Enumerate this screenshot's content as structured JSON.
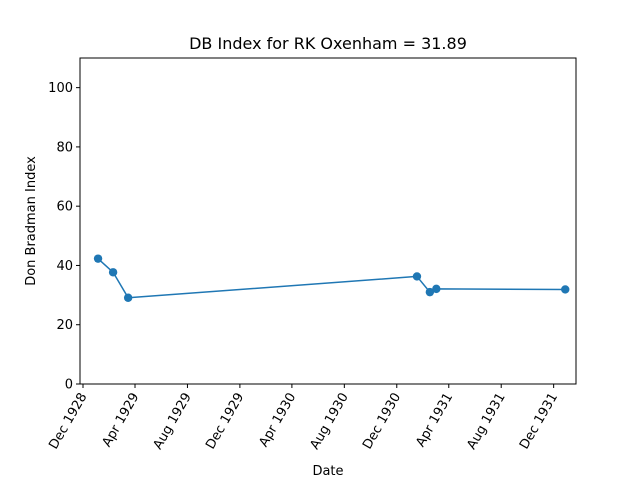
{
  "chart_data": {
    "type": "line",
    "title": "DB Index for RK Oxenham = 31.89",
    "xlabel": "Date",
    "ylabel": "Don Bradman Index",
    "ylim": [
      0,
      110
    ],
    "yticks": [
      0,
      20,
      40,
      60,
      80,
      100
    ],
    "xlim": [
      "1928-11-24",
      "1932-01-22"
    ],
    "xticks": [
      {
        "date": "1928-12-01",
        "label": "Dec 1928"
      },
      {
        "date": "1929-04-01",
        "label": "Apr 1929"
      },
      {
        "date": "1929-08-01",
        "label": "Aug 1929"
      },
      {
        "date": "1929-12-01",
        "label": "Dec 1929"
      },
      {
        "date": "1930-04-01",
        "label": "Apr 1930"
      },
      {
        "date": "1930-08-01",
        "label": "Aug 1930"
      },
      {
        "date": "1930-12-01",
        "label": "Dec 1930"
      },
      {
        "date": "1931-04-01",
        "label": "Apr 1931"
      },
      {
        "date": "1931-08-01",
        "label": "Aug 1931"
      },
      {
        "date": "1931-12-01",
        "label": "Dec 1931"
      }
    ],
    "grid": false,
    "series": [
      {
        "color": "#1f77b4",
        "marker": "circle",
        "points": [
          {
            "x": "1929-01-05",
            "y": 42.3
          },
          {
            "x": "1929-02-09",
            "y": 37.7
          },
          {
            "x": "1929-03-16",
            "y": 29.1
          },
          {
            "x": "1931-01-17",
            "y": 36.3
          },
          {
            "x": "1931-02-16",
            "y": 31.0
          },
          {
            "x": "1931-03-03",
            "y": 32.1
          },
          {
            "x": "1931-12-28",
            "y": 31.9
          }
        ]
      }
    ]
  }
}
